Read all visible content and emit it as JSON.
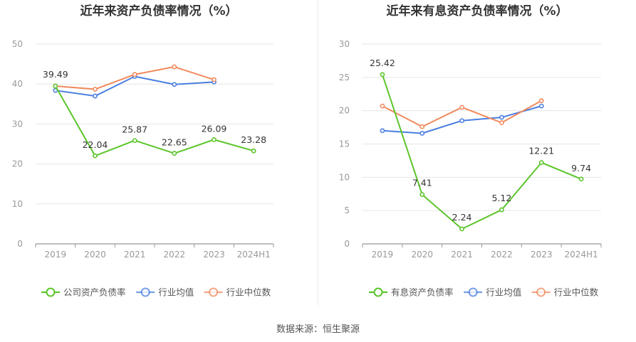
{
  "source": "数据来源：恒生聚源",
  "chart_data": [
    {
      "type": "line",
      "title": "近年来资产负债率情况（%）",
      "categories": [
        "2019",
        "2020",
        "2021",
        "2022",
        "2023",
        "2024H1"
      ],
      "yticks": [
        "0",
        "10",
        "20",
        "30",
        "40",
        "50"
      ],
      "ylim": [
        0,
        50
      ],
      "grid": true,
      "legend_position": "bottom",
      "series": [
        {
          "name": "公司资产负债率",
          "color": "#5cc52b",
          "values": [
            39.49,
            22.04,
            25.87,
            22.65,
            26.09,
            23.28
          ],
          "labels": [
            "39.49",
            "22.04",
            "25.87",
            "22.65",
            "26.09",
            "23.28"
          ]
        },
        {
          "name": "行业均值",
          "color": "#4a7fe0",
          "values": [
            38.4,
            37.0,
            41.9,
            39.9,
            40.5,
            null
          ]
        },
        {
          "name": "行业中位数",
          "color": "#f08a5d",
          "values": [
            39.5,
            38.7,
            42.4,
            44.3,
            41.1,
            null
          ]
        }
      ]
    },
    {
      "type": "line",
      "title": "近年来有息资产负债率情况（%）",
      "categories": [
        "2019",
        "2020",
        "2021",
        "2022",
        "2023",
        "2024H1"
      ],
      "yticks": [
        "0",
        "5",
        "10",
        "15",
        "20",
        "25",
        "30"
      ],
      "ylim": [
        0,
        30
      ],
      "grid": true,
      "legend_position": "bottom",
      "series": [
        {
          "name": "有息资产负债率",
          "color": "#5cc52b",
          "values": [
            25.42,
            7.41,
            2.24,
            5.12,
            12.21,
            9.74
          ],
          "labels": [
            "25.42",
            "7.41",
            "2.24",
            "5.12",
            "12.21",
            "9.74"
          ]
        },
        {
          "name": "行业均值",
          "color": "#4a7fe0",
          "values": [
            17.0,
            16.6,
            18.5,
            19.0,
            20.7,
            null
          ]
        },
        {
          "name": "行业中位数",
          "color": "#f08a5d",
          "values": [
            20.7,
            17.6,
            20.5,
            18.2,
            21.5,
            null
          ]
        }
      ]
    }
  ]
}
